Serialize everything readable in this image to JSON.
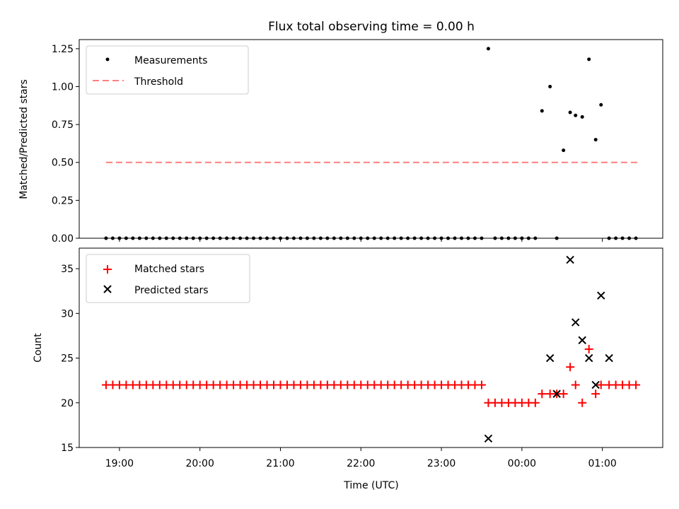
{
  "title": "Flux total observing time = 0.00 h",
  "colors": {
    "matched": "#ff0000",
    "predicted": "#000000",
    "threshold": "#ff7f7f",
    "measurement": "#000000"
  },
  "chart_data": [
    {
      "type": "scatter",
      "ylabel": "Matched/Predicted stars",
      "xlabel": "",
      "ylim": [
        0,
        1.31
      ],
      "yticks": [
        "0.00",
        "0.25",
        "0.50",
        "0.75",
        "1.00",
        "1.25"
      ],
      "legend": {
        "placement": "top-left",
        "entries": [
          "Measurements",
          "Threshold"
        ]
      },
      "threshold": {
        "name": "Threshold",
        "y": 0.5,
        "x_start": "18:50",
        "x_end": "01:27"
      },
      "measurements": {
        "name": "Measurements",
        "x": [
          "18:50",
          "18:55",
          "19:00",
          "19:05",
          "19:10",
          "19:15",
          "19:20",
          "19:25",
          "19:30",
          "19:35",
          "19:40",
          "19:45",
          "19:50",
          "19:55",
          "20:00",
          "20:05",
          "20:10",
          "20:15",
          "20:20",
          "20:25",
          "20:30",
          "20:35",
          "20:40",
          "20:45",
          "20:50",
          "20:55",
          "21:00",
          "21:05",
          "21:10",
          "21:15",
          "21:20",
          "21:25",
          "21:30",
          "21:35",
          "21:40",
          "21:45",
          "21:50",
          "21:55",
          "22:00",
          "22:05",
          "22:10",
          "22:15",
          "22:20",
          "22:25",
          "22:30",
          "22:35",
          "22:40",
          "22:45",
          "22:50",
          "22:55",
          "23:00",
          "23:05",
          "23:10",
          "23:15",
          "23:20",
          "23:25",
          "23:30",
          "23:35",
          "23:40",
          "23:45",
          "23:50",
          "23:55",
          "00:00",
          "00:05",
          "00:10",
          "00:15",
          "00:21",
          "00:26",
          "00:31",
          "00:36",
          "00:40",
          "00:45",
          "00:50",
          "00:55",
          "00:59",
          "01:05",
          "01:10",
          "01:15",
          "01:20",
          "01:25"
        ],
        "y": [
          0,
          0,
          0,
          0,
          0,
          0,
          0,
          0,
          0,
          0,
          0,
          0,
          0,
          0,
          0,
          0,
          0,
          0,
          0,
          0,
          0,
          0,
          0,
          0,
          0,
          0,
          0,
          0,
          0,
          0,
          0,
          0,
          0,
          0,
          0,
          0,
          0,
          0,
          0,
          0,
          0,
          0,
          0,
          0,
          0,
          0,
          0,
          0,
          0,
          0,
          0,
          0,
          0,
          0,
          0,
          0,
          0,
          1.25,
          0,
          0,
          0,
          0,
          0,
          0,
          0,
          0.84,
          1.0,
          0,
          0.58,
          0.83,
          0.81,
          0.8,
          1.18,
          0.65,
          0.88,
          0,
          0,
          0,
          0,
          0
        ]
      }
    },
    {
      "type": "scatter",
      "ylabel": "Count",
      "xlabel": "Time (UTC)",
      "ylim": [
        15,
        37.3
      ],
      "yticks": [
        "15",
        "20",
        "25",
        "30",
        "35"
      ],
      "xticks": [
        "19:00",
        "20:00",
        "21:00",
        "22:00",
        "23:00",
        "00:00",
        "01:00"
      ],
      "xlim": [
        "18:30",
        "01:45"
      ],
      "legend": {
        "placement": "top-left",
        "entries": [
          "Matched stars",
          "Predicted stars"
        ]
      },
      "matched": {
        "name": "Matched stars",
        "x": [
          "18:50",
          "18:55",
          "19:00",
          "19:05",
          "19:10",
          "19:15",
          "19:20",
          "19:25",
          "19:30",
          "19:35",
          "19:40",
          "19:45",
          "19:50",
          "19:55",
          "20:00",
          "20:05",
          "20:10",
          "20:15",
          "20:20",
          "20:25",
          "20:30",
          "20:35",
          "20:40",
          "20:45",
          "20:50",
          "20:55",
          "21:00",
          "21:05",
          "21:10",
          "21:15",
          "21:20",
          "21:25",
          "21:30",
          "21:35",
          "21:40",
          "21:45",
          "21:50",
          "21:55",
          "22:00",
          "22:05",
          "22:10",
          "22:15",
          "22:20",
          "22:25",
          "22:30",
          "22:35",
          "22:40",
          "22:45",
          "22:50",
          "22:55",
          "23:00",
          "23:05",
          "23:10",
          "23:15",
          "23:20",
          "23:25",
          "23:30",
          "23:35",
          "23:40",
          "23:45",
          "23:50",
          "23:55",
          "00:00",
          "00:05",
          "00:10",
          "00:15",
          "00:21",
          "00:26",
          "00:31",
          "00:36",
          "00:40",
          "00:45",
          "00:50",
          "00:55",
          "00:59",
          "01:05",
          "01:10",
          "01:15",
          "01:20",
          "01:25"
        ],
        "y": [
          22,
          22,
          22,
          22,
          22,
          22,
          22,
          22,
          22,
          22,
          22,
          22,
          22,
          22,
          22,
          22,
          22,
          22,
          22,
          22,
          22,
          22,
          22,
          22,
          22,
          22,
          22,
          22,
          22,
          22,
          22,
          22,
          22,
          22,
          22,
          22,
          22,
          22,
          22,
          22,
          22,
          22,
          22,
          22,
          22,
          22,
          22,
          22,
          22,
          22,
          22,
          22,
          22,
          22,
          22,
          22,
          22,
          20,
          20,
          20,
          20,
          20,
          20,
          20,
          20,
          21,
          21,
          21,
          21,
          24,
          22,
          20,
          26,
          21,
          22,
          22,
          22,
          22,
          22,
          22
        ]
      },
      "predicted": {
        "name": "Predicted stars",
        "x": [
          "23:35",
          "00:21",
          "00:26",
          "00:36",
          "00:40",
          "00:45",
          "00:50",
          "00:55",
          "01:05"
        ],
        "y": [
          16,
          25,
          21,
          36,
          29,
          27,
          25,
          22,
          25
        ]
      },
      "predicted_extra": {
        "x": [
          "00:59"
        ],
        "y": [
          32
        ]
      }
    }
  ]
}
